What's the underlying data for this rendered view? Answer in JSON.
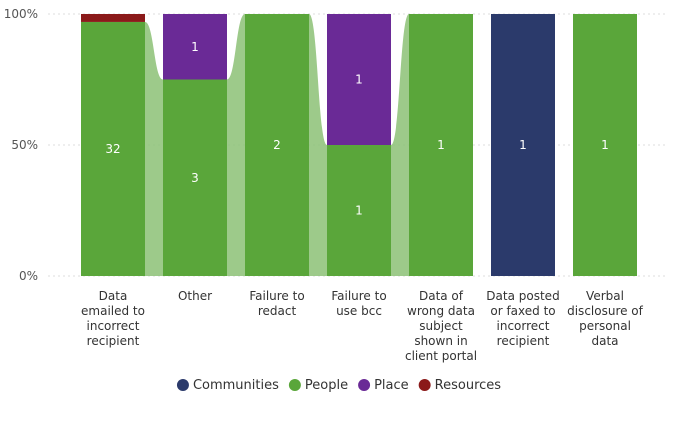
{
  "chart_data": {
    "type": "bar",
    "stacked": "percent",
    "categories": [
      "Data emailed to incorrect recipient",
      "Other",
      "Failure to redact",
      "Failure to use bcc",
      "Data of wrong data subject shown in client portal",
      "Data posted or faxed to incorrect recipient",
      "Verbal disclosure of personal data"
    ],
    "series": [
      {
        "name": "Communities",
        "color": "#2b3a6b",
        "values": [
          0,
          0,
          0,
          0,
          0,
          1,
          0
        ]
      },
      {
        "name": "People",
        "color": "#5aa63a",
        "values": [
          32,
          3,
          2,
          1,
          1,
          0,
          1
        ]
      },
      {
        "name": "Place",
        "color": "#6a2a96",
        "values": [
          0,
          1,
          0,
          1,
          0,
          0,
          0
        ]
      },
      {
        "name": "Resources",
        "color": "#8b1a1a",
        "values": [
          1,
          0,
          0,
          0,
          0,
          0,
          0
        ]
      }
    ],
    "y_ticks": [
      "0%",
      "50%",
      "100%"
    ],
    "ylim": [
      0,
      100
    ],
    "ribbons": true,
    "legend_position": "bottom",
    "gridlines": true
  }
}
